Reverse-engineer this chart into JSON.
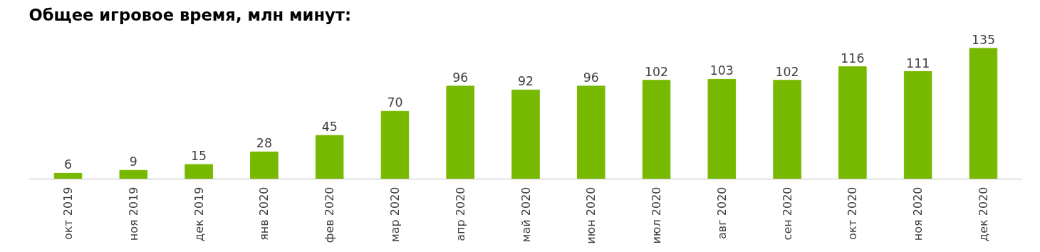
{
  "chart_data": {
    "type": "bar",
    "title": "Общее игровое время, млн минут:",
    "categories": [
      "окт 2019",
      "ноя 2019",
      "дек 2019",
      "янв 2020",
      "фев 2020",
      "мар 2020",
      "апр 2020",
      "май 2020",
      "июн 2020",
      "июл 2020",
      "авг 2020",
      "сен 2020",
      "окт 2020",
      "ноя 2020",
      "дек 2020"
    ],
    "values": [
      6,
      9,
      15,
      28,
      45,
      70,
      96,
      92,
      96,
      102,
      103,
      102,
      116,
      111,
      135
    ],
    "color": "#77b900",
    "data_labels": true
  }
}
